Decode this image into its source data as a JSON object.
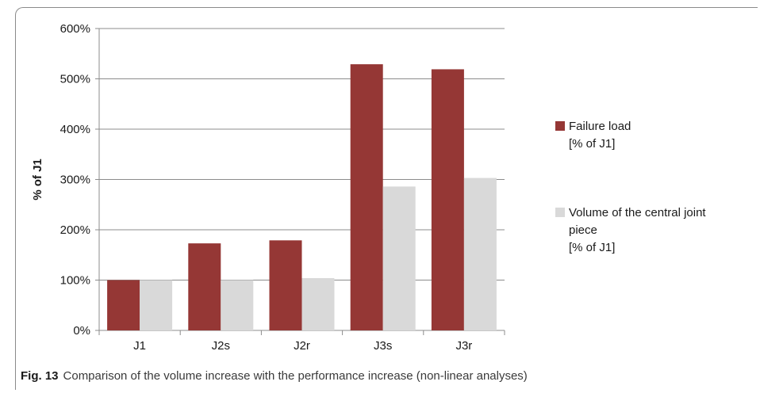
{
  "chart_data": {
    "type": "bar",
    "categories": [
      "J1",
      "J2s",
      "J2r",
      "J3s",
      "J3r"
    ],
    "series": [
      {
        "name": "Failure load\n[% of J1]",
        "color": "#953735",
        "values": [
          100,
          173,
          179,
          529,
          519
        ]
      },
      {
        "name": "Volume of the central joint\npiece\n[% of J1]",
        "color": "#d9d9d9",
        "values": [
          100,
          100,
          104,
          286,
          303
        ]
      }
    ],
    "ylabel": "% of J1",
    "xlabel": "",
    "ylim": [
      0,
      600
    ],
    "yticks": [
      0,
      100,
      200,
      300,
      400,
      500,
      600
    ],
    "ytick_labels": [
      "0%",
      "100%",
      "200%",
      "300%",
      "400%",
      "500%",
      "600%"
    ],
    "grid": true,
    "legend_position": "right"
  },
  "caption": {
    "label": "Fig. 13",
    "text": "Comparison of the volume increase with the performance increase (non-linear analyses)"
  }
}
